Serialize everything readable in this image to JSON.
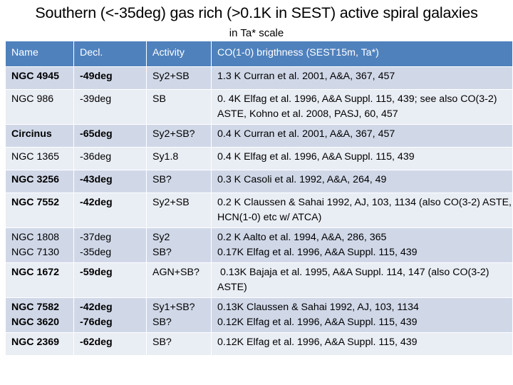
{
  "title": "Southern (<-35deg) gas rich (>0.1K in SEST) active spiral galaxies",
  "subtitle": "in Ta* scale",
  "table": {
    "headers": [
      "Name",
      "Decl.",
      "Activity",
      "CO(1-0) brigthness (SEST15m, Ta*)"
    ],
    "rows": [
      {
        "name": "NGC 4945",
        "decl": "-49deg",
        "activity": "Sy2+SB",
        "co": "1.3 K Curran et al. 2001, A&A, 367, 457"
      },
      {
        "name": "NGC 986",
        "decl": "-39deg",
        "activity": "SB",
        "co": "0. 4K Elfag et al. 1996, A&A Suppl. 115, 439; see also CO(3-2) ASTE, Kohno et al. 2008, PASJ, 60, 457"
      },
      {
        "name": "Circinus",
        "decl": "-65deg",
        "activity": "Sy2+SB?",
        "co": "0.4 K Curran et al. 2001, A&A, 367, 457"
      },
      {
        "name": "NGC 1365",
        "decl": "-36deg",
        "activity": "Sy1.8",
        "co": "0.4 K Elfag et al. 1996, A&A Suppl. 115, 439"
      },
      {
        "name": "NGC 3256",
        "decl": "-43deg",
        "activity": "SB?",
        "co": "0.3 K Casoli et al. 1992, A&A, 264, 49"
      },
      {
        "name": "NGC 7552",
        "decl": "-42deg",
        "activity": "Sy2+SB",
        "co": "0.2 K Claussen & Sahai 1992, AJ, 103, 1134 (also CO(3-2) ASTE, HCN(1-0) etc w/ ATCA)"
      },
      {
        "name": "NGC 1808",
        "decl": "-37deg",
        "activity": "Sy2",
        "co": "0.2 K Aalto et al. 1994, A&A, 286, 365"
      },
      {
        "name": "NGC 7130",
        "decl": "-35deg",
        "activity": "SB?",
        "co": "0.17K Elfag et al. 1996, A&A Suppl. 115, 439"
      },
      {
        "name": "NGC 1672",
        "decl": "-59deg",
        "activity": "AGN+SB?",
        "co": " 0.13K Bajaja et al. 1995, A&A Suppl. 114, 147 (also CO(3-2) ASTE)"
      },
      {
        "name": "NGC 7582",
        "decl": "-42deg",
        "activity": "Sy1+SB?",
        "co": "0.13K Claussen & Sahai 1992, AJ, 103, 1134"
      },
      {
        "name": "NGC 3620",
        "decl": "-76deg",
        "activity": "SB?",
        "co": "0.12K Elfag et al. 1996, A&A Suppl. 115, 439"
      },
      {
        "name": "NGC 2369",
        "decl": "-62deg",
        "activity": "SB?",
        "co": "0.12K Elfag et al. 1996, A&A Suppl. 115, 439"
      }
    ]
  }
}
